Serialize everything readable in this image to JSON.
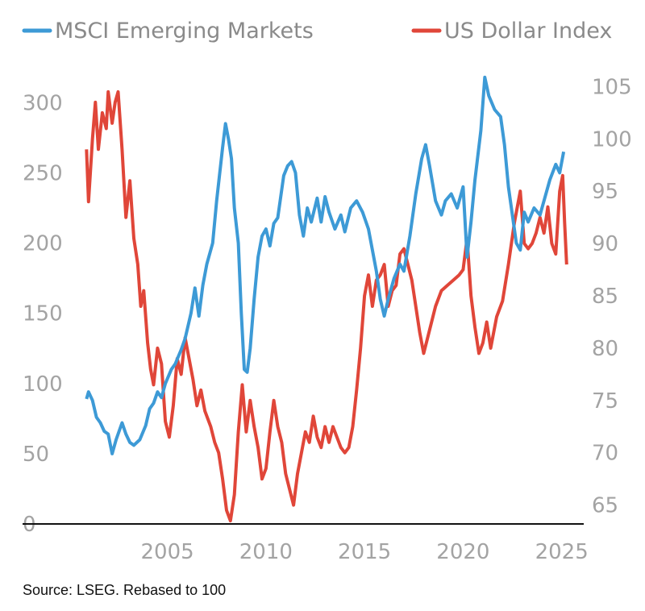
{
  "chart_data": {
    "type": "line",
    "legend_placement": "top",
    "grid": false,
    "source": "Source: LSEG. Rebased to 100",
    "x_ticks": [
      "2005",
      "2010",
      "2015",
      "2020",
      "2025"
    ],
    "x_range": [
      2000.6,
      2025.3
    ],
    "y_left": {
      "range": [
        0,
        330
      ],
      "ticks": [
        "0",
        "50",
        "100",
        "150",
        "200",
        "250",
        "300"
      ]
    },
    "y_right": {
      "range": [
        63.2,
        107.5
      ],
      "ticks": [
        "65",
        "70",
        "75",
        "80",
        "85",
        "90",
        "95",
        "100",
        "105"
      ]
    },
    "series": [
      {
        "name": "MSCI Emerging Markets",
        "axis": "left",
        "color": "#3d9ad6",
        "points": [
          [
            2000.9,
            89
          ],
          [
            2001.0,
            94
          ],
          [
            2001.2,
            88
          ],
          [
            2001.4,
            76
          ],
          [
            2001.6,
            72
          ],
          [
            2001.8,
            66
          ],
          [
            2002.0,
            64
          ],
          [
            2002.2,
            50
          ],
          [
            2002.4,
            60
          ],
          [
            2002.7,
            72
          ],
          [
            2002.9,
            64
          ],
          [
            2003.1,
            58
          ],
          [
            2003.3,
            56
          ],
          [
            2003.6,
            60
          ],
          [
            2003.9,
            70
          ],
          [
            2004.1,
            82
          ],
          [
            2004.3,
            86
          ],
          [
            2004.5,
            94
          ],
          [
            2004.7,
            90
          ],
          [
            2004.9,
            100
          ],
          [
            2005.2,
            110
          ],
          [
            2005.4,
            114
          ],
          [
            2005.7,
            124
          ],
          [
            2005.9,
            132
          ],
          [
            2006.2,
            150
          ],
          [
            2006.4,
            168
          ],
          [
            2006.6,
            148
          ],
          [
            2006.8,
            170
          ],
          [
            2007.0,
            185
          ],
          [
            2007.3,
            200
          ],
          [
            2007.5,
            230
          ],
          [
            2007.8,
            268
          ],
          [
            2007.95,
            285
          ],
          [
            2008.1,
            274
          ],
          [
            2008.25,
            260
          ],
          [
            2008.4,
            225
          ],
          [
            2008.6,
            200
          ],
          [
            2008.75,
            150
          ],
          [
            2008.9,
            110
          ],
          [
            2009.05,
            108
          ],
          [
            2009.2,
            125
          ],
          [
            2009.4,
            160
          ],
          [
            2009.6,
            190
          ],
          [
            2009.8,
            205
          ],
          [
            2010.0,
            210
          ],
          [
            2010.2,
            198
          ],
          [
            2010.4,
            214
          ],
          [
            2010.6,
            218
          ],
          [
            2010.9,
            248
          ],
          [
            2011.1,
            255
          ],
          [
            2011.3,
            258
          ],
          [
            2011.5,
            250
          ],
          [
            2011.7,
            220
          ],
          [
            2011.9,
            205
          ],
          [
            2012.1,
            225
          ],
          [
            2012.3,
            215
          ],
          [
            2012.6,
            232
          ],
          [
            2012.8,
            215
          ],
          [
            2013.0,
            233
          ],
          [
            2013.2,
            222
          ],
          [
            2013.5,
            210
          ],
          [
            2013.8,
            220
          ],
          [
            2014.0,
            208
          ],
          [
            2014.3,
            225
          ],
          [
            2014.6,
            230
          ],
          [
            2014.9,
            222
          ],
          [
            2015.2,
            210
          ],
          [
            2015.4,
            195
          ],
          [
            2015.6,
            180
          ],
          [
            2015.8,
            160
          ],
          [
            2016.0,
            148
          ],
          [
            2016.2,
            160
          ],
          [
            2016.5,
            175
          ],
          [
            2016.8,
            185
          ],
          [
            2017.0,
            180
          ],
          [
            2017.3,
            205
          ],
          [
            2017.6,
            235
          ],
          [
            2017.9,
            260
          ],
          [
            2018.1,
            270
          ],
          [
            2018.3,
            255
          ],
          [
            2018.6,
            230
          ],
          [
            2018.9,
            220
          ],
          [
            2019.1,
            230
          ],
          [
            2019.4,
            235
          ],
          [
            2019.7,
            225
          ],
          [
            2020.0,
            240
          ],
          [
            2020.2,
            190
          ],
          [
            2020.4,
            215
          ],
          [
            2020.6,
            245
          ],
          [
            2020.9,
            280
          ],
          [
            2021.1,
            318
          ],
          [
            2021.3,
            305
          ],
          [
            2021.6,
            295
          ],
          [
            2021.9,
            290
          ],
          [
            2022.1,
            270
          ],
          [
            2022.3,
            240
          ],
          [
            2022.5,
            220
          ],
          [
            2022.7,
            200
          ],
          [
            2022.9,
            195
          ],
          [
            2023.1,
            222
          ],
          [
            2023.3,
            215
          ],
          [
            2023.6,
            225
          ],
          [
            2023.9,
            220
          ],
          [
            2024.1,
            230
          ],
          [
            2024.4,
            245
          ],
          [
            2024.7,
            256
          ],
          [
            2024.9,
            250
          ],
          [
            2025.1,
            265
          ]
        ]
      },
      {
        "name": "US Dollar Index",
        "axis": "right",
        "color": "#e04639",
        "points": [
          [
            2000.9,
            99
          ],
          [
            2001.0,
            94
          ],
          [
            2001.2,
            100
          ],
          [
            2001.35,
            103.5
          ],
          [
            2001.5,
            99
          ],
          [
            2001.7,
            102.5
          ],
          [
            2001.9,
            101
          ],
          [
            2002.0,
            104.5
          ],
          [
            2002.2,
            101.5
          ],
          [
            2002.35,
            103.5
          ],
          [
            2002.5,
            104.5
          ],
          [
            2002.7,
            99
          ],
          [
            2002.9,
            92.5
          ],
          [
            2003.1,
            96
          ],
          [
            2003.3,
            90.5
          ],
          [
            2003.5,
            88
          ],
          [
            2003.65,
            84
          ],
          [
            2003.8,
            85.5
          ],
          [
            2004.0,
            80.5
          ],
          [
            2004.15,
            78
          ],
          [
            2004.3,
            76.5
          ],
          [
            2004.5,
            80
          ],
          [
            2004.7,
            78.5
          ],
          [
            2004.9,
            73
          ],
          [
            2005.1,
            71.5
          ],
          [
            2005.3,
            74.5
          ],
          [
            2005.5,
            79
          ],
          [
            2005.7,
            77.5
          ],
          [
            2005.9,
            81
          ],
          [
            2006.1,
            79
          ],
          [
            2006.3,
            77
          ],
          [
            2006.5,
            74.5
          ],
          [
            2006.7,
            76
          ],
          [
            2006.9,
            74
          ],
          [
            2007.2,
            72.5
          ],
          [
            2007.4,
            71
          ],
          [
            2007.6,
            70
          ],
          [
            2007.8,
            67.5
          ],
          [
            2008.0,
            64.5
          ],
          [
            2008.2,
            63.5
          ],
          [
            2008.4,
            66
          ],
          [
            2008.6,
            72
          ],
          [
            2008.8,
            76.5
          ],
          [
            2009.0,
            72
          ],
          [
            2009.2,
            75
          ],
          [
            2009.4,
            72.5
          ],
          [
            2009.6,
            70.5
          ],
          [
            2009.8,
            67.5
          ],
          [
            2010.0,
            68.5
          ],
          [
            2010.2,
            72
          ],
          [
            2010.4,
            75
          ],
          [
            2010.6,
            72.5
          ],
          [
            2010.8,
            71
          ],
          [
            2011.0,
            68
          ],
          [
            2011.2,
            66.5
          ],
          [
            2011.4,
            65
          ],
          [
            2011.6,
            68
          ],
          [
            2011.8,
            70
          ],
          [
            2012.0,
            72
          ],
          [
            2012.2,
            71
          ],
          [
            2012.4,
            73.5
          ],
          [
            2012.6,
            71.5
          ],
          [
            2012.8,
            70.5
          ],
          [
            2013.0,
            72.5
          ],
          [
            2013.2,
            71
          ],
          [
            2013.4,
            72.5
          ],
          [
            2013.6,
            71.5
          ],
          [
            2013.8,
            70.5
          ],
          [
            2014.0,
            70
          ],
          [
            2014.2,
            70.5
          ],
          [
            2014.4,
            72.5
          ],
          [
            2014.6,
            76
          ],
          [
            2014.8,
            80
          ],
          [
            2015.0,
            85
          ],
          [
            2015.2,
            87
          ],
          [
            2015.4,
            84
          ],
          [
            2015.6,
            86.5
          ],
          [
            2015.8,
            87
          ],
          [
            2016.0,
            88
          ],
          [
            2016.2,
            84
          ],
          [
            2016.4,
            85.5
          ],
          [
            2016.6,
            86
          ],
          [
            2016.8,
            89
          ],
          [
            2017.0,
            89.5
          ],
          [
            2017.2,
            88
          ],
          [
            2017.4,
            86.5
          ],
          [
            2017.6,
            84
          ],
          [
            2017.8,
            81.5
          ],
          [
            2018.0,
            79.5
          ],
          [
            2018.2,
            81
          ],
          [
            2018.4,
            82.5
          ],
          [
            2018.6,
            84
          ],
          [
            2018.9,
            85.5
          ],
          [
            2019.2,
            86
          ],
          [
            2019.5,
            86.5
          ],
          [
            2019.8,
            87
          ],
          [
            2020.0,
            87.5
          ],
          [
            2020.2,
            90.5
          ],
          [
            2020.4,
            85
          ],
          [
            2020.6,
            82
          ],
          [
            2020.8,
            79.5
          ],
          [
            2021.0,
            80.5
          ],
          [
            2021.2,
            82.5
          ],
          [
            2021.4,
            80
          ],
          [
            2021.7,
            83
          ],
          [
            2022.0,
            84.5
          ],
          [
            2022.3,
            88
          ],
          [
            2022.6,
            92
          ],
          [
            2022.9,
            95
          ],
          [
            2023.1,
            90
          ],
          [
            2023.3,
            89.5
          ],
          [
            2023.5,
            90
          ],
          [
            2023.7,
            91
          ],
          [
            2023.9,
            92.5
          ],
          [
            2024.1,
            91
          ],
          [
            2024.3,
            93.5
          ],
          [
            2024.5,
            90
          ],
          [
            2024.7,
            89
          ],
          [
            2024.9,
            95
          ],
          [
            2025.05,
            96.5
          ],
          [
            2025.15,
            92
          ],
          [
            2025.25,
            88
          ]
        ]
      }
    ]
  }
}
